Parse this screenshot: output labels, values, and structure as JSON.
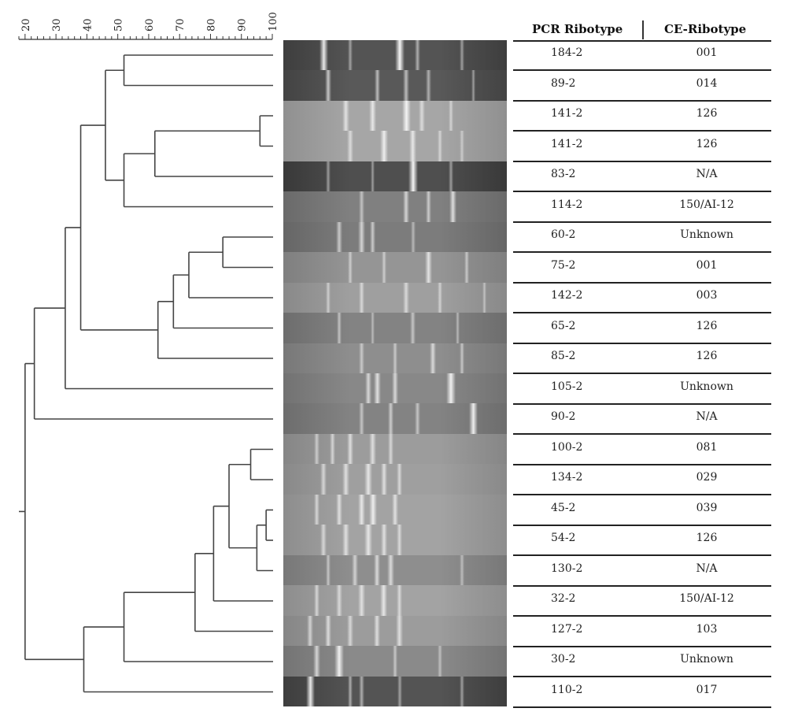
{
  "scale": {
    "ticks": [
      "20",
      "30",
      "40",
      "50",
      "60",
      "70",
      "80",
      "90",
      "100"
    ]
  },
  "table": {
    "header_pcr": "PCR Ribotype",
    "header_ce": "CE-Ribotype",
    "rows": [
      {
        "pcr": "184-2",
        "ce": "001"
      },
      {
        "pcr": "89-2",
        "ce": "014"
      },
      {
        "pcr": "141-2",
        "ce": "126"
      },
      {
        "pcr": "141-2",
        "ce": "126"
      },
      {
        "pcr": "83-2",
        "ce": "N/A"
      },
      {
        "pcr": "114-2",
        "ce": "150/AI-12"
      },
      {
        "pcr": "60-2",
        "ce": "Unknown"
      },
      {
        "pcr": "75-2",
        "ce": "001"
      },
      {
        "pcr": "142-2",
        "ce": "003"
      },
      {
        "pcr": "65-2",
        "ce": "126"
      },
      {
        "pcr": "85-2",
        "ce": "126"
      },
      {
        "pcr": "105-2",
        "ce": "Unknown"
      },
      {
        "pcr": "90-2",
        "ce": "N/A"
      },
      {
        "pcr": "100-2",
        "ce": "081"
      },
      {
        "pcr": "134-2",
        "ce": "029"
      },
      {
        "pcr": "45-2",
        "ce": "039"
      },
      {
        "pcr": "54-2",
        "ce": "126"
      },
      {
        "pcr": "130-2",
        "ce": "N/A"
      },
      {
        "pcr": "32-2",
        "ce": "150/AI-12"
      },
      {
        "pcr": "127-2",
        "ce": "103"
      },
      {
        "pcr": "30-2",
        "ce": "Unknown"
      },
      {
        "pcr": "110-2",
        "ce": "017"
      }
    ]
  },
  "dendrogram": {
    "merges": [
      {
        "a": "L2",
        "b": "L3",
        "sim": 96,
        "id": "N1"
      },
      {
        "a": "L15",
        "b": "L16",
        "sim": 98,
        "id": "N2"
      },
      {
        "a": "N2",
        "b": "L17",
        "sim": 95,
        "id": "N3"
      },
      {
        "a": "L13",
        "b": "L14",
        "sim": 93,
        "id": "N4"
      },
      {
        "a": "L6",
        "b": "L7",
        "sim": 84,
        "id": "N5"
      },
      {
        "a": "N4",
        "b": "N3",
        "sim": 86,
        "id": "N6"
      },
      {
        "a": "N6",
        "b": "L18",
        "sim": 81,
        "id": "N7"
      },
      {
        "a": "N7",
        "b": "L19",
        "sim": 75,
        "id": "N8"
      },
      {
        "a": "N5",
        "b": "L8",
        "sim": 73,
        "id": "N9"
      },
      {
        "a": "N9",
        "b": "L9",
        "sim": 68,
        "id": "N10"
      },
      {
        "a": "N10",
        "b": "L10",
        "sim": 63,
        "id": "N11"
      },
      {
        "a": "N1",
        "b": "L4",
        "sim": 62,
        "id": "N12"
      },
      {
        "a": "N12",
        "b": "L5",
        "sim": 52,
        "id": "N13"
      },
      {
        "a": "L0",
        "b": "L1",
        "sim": 52,
        "id": "N14"
      },
      {
        "a": "N8",
        "b": "L20",
        "sim": 52,
        "id": "N15"
      },
      {
        "a": "N14",
        "b": "N13",
        "sim": 46,
        "id": "N16"
      },
      {
        "a": "N15",
        "b": "L21",
        "sim": 39,
        "id": "N17"
      },
      {
        "a": "N16",
        "b": "N11",
        "sim": 38,
        "id": "N18"
      },
      {
        "a": "N18",
        "b": "L11",
        "sim": 33,
        "id": "N19"
      },
      {
        "a": "N19",
        "b": "L12",
        "sim": 23,
        "id": "N20"
      },
      {
        "a": "N20",
        "b": "N17",
        "sim": 20,
        "id": "N21"
      }
    ]
  },
  "gel": {
    "lanes": [
      {
        "tone": 0.25,
        "bands": [
          [
            0.18,
            0.9
          ],
          [
            0.3,
            0.3
          ],
          [
            0.52,
            1.0
          ],
          [
            0.6,
            0.4
          ],
          [
            0.8,
            0.3
          ]
        ]
      },
      {
        "tone": 0.28,
        "bands": [
          [
            0.2,
            0.6
          ],
          [
            0.42,
            0.5
          ],
          [
            0.55,
            0.5
          ],
          [
            0.65,
            0.4
          ],
          [
            0.85,
            0.3
          ]
        ]
      },
      {
        "tone": 0.72,
        "bands": [
          [
            0.28,
            0.6
          ],
          [
            0.4,
            0.7
          ],
          [
            0.55,
            0.9
          ],
          [
            0.62,
            0.5
          ],
          [
            0.75,
            0.4
          ]
        ]
      },
      {
        "tone": 0.72,
        "bands": [
          [
            0.3,
            0.5
          ],
          [
            0.45,
            0.8
          ],
          [
            0.58,
            0.7
          ],
          [
            0.7,
            0.4
          ],
          [
            0.8,
            0.3
          ]
        ]
      },
      {
        "tone": 0.22,
        "bands": [
          [
            0.2,
            0.3
          ],
          [
            0.4,
            0.3
          ],
          [
            0.58,
            1.0
          ],
          [
            0.75,
            0.3
          ]
        ]
      },
      {
        "tone": 0.5,
        "bands": [
          [
            0.35,
            0.4
          ],
          [
            0.55,
            0.6
          ],
          [
            0.65,
            0.5
          ],
          [
            0.76,
            0.7
          ]
        ]
      },
      {
        "tone": 0.48,
        "bands": [
          [
            0.25,
            0.5
          ],
          [
            0.35,
            0.6
          ],
          [
            0.4,
            0.5
          ],
          [
            0.58,
            0.3
          ]
        ]
      },
      {
        "tone": 0.62,
        "bands": [
          [
            0.3,
            0.4
          ],
          [
            0.45,
            0.4
          ],
          [
            0.65,
            0.7
          ],
          [
            0.82,
            0.4
          ]
        ]
      },
      {
        "tone": 0.68,
        "bands": [
          [
            0.2,
            0.4
          ],
          [
            0.35,
            0.5
          ],
          [
            0.55,
            0.5
          ],
          [
            0.7,
            0.4
          ],
          [
            0.9,
            0.3
          ]
        ]
      },
      {
        "tone": 0.52,
        "bands": [
          [
            0.25,
            0.4
          ],
          [
            0.4,
            0.3
          ],
          [
            0.58,
            0.4
          ],
          [
            0.78,
            0.3
          ]
        ]
      },
      {
        "tone": 0.58,
        "bands": [
          [
            0.35,
            0.4
          ],
          [
            0.5,
            0.4
          ],
          [
            0.67,
            0.6
          ],
          [
            0.8,
            0.4
          ]
        ]
      },
      {
        "tone": 0.55,
        "bands": [
          [
            0.38,
            0.6
          ],
          [
            0.42,
            0.7
          ],
          [
            0.5,
            0.6
          ],
          [
            0.75,
            0.9
          ]
        ]
      },
      {
        "tone": 0.52,
        "bands": [
          [
            0.35,
            0.4
          ],
          [
            0.48,
            0.5
          ],
          [
            0.6,
            0.4
          ],
          [
            0.85,
            0.9
          ]
        ]
      },
      {
        "tone": 0.66,
        "bands": [
          [
            0.15,
            0.4
          ],
          [
            0.22,
            0.5
          ],
          [
            0.3,
            0.6
          ],
          [
            0.4,
            0.6
          ],
          [
            0.48,
            0.5
          ]
        ]
      },
      {
        "tone": 0.68,
        "bands": [
          [
            0.18,
            0.5
          ],
          [
            0.28,
            0.6
          ],
          [
            0.38,
            0.7
          ],
          [
            0.45,
            0.6
          ],
          [
            0.52,
            0.5
          ]
        ]
      },
      {
        "tone": 0.7,
        "bands": [
          [
            0.15,
            0.5
          ],
          [
            0.25,
            0.6
          ],
          [
            0.35,
            0.7
          ],
          [
            0.4,
            0.8
          ],
          [
            0.5,
            0.6
          ]
        ]
      },
      {
        "tone": 0.7,
        "bands": [
          [
            0.18,
            0.5
          ],
          [
            0.28,
            0.6
          ],
          [
            0.38,
            0.7
          ],
          [
            0.45,
            0.6
          ],
          [
            0.52,
            0.5
          ]
        ]
      },
      {
        "tone": 0.58,
        "bands": [
          [
            0.2,
            0.4
          ],
          [
            0.32,
            0.5
          ],
          [
            0.42,
            0.6
          ],
          [
            0.48,
            0.6
          ],
          [
            0.8,
            0.3
          ]
        ]
      },
      {
        "tone": 0.7,
        "bands": [
          [
            0.15,
            0.5
          ],
          [
            0.25,
            0.5
          ],
          [
            0.35,
            0.6
          ],
          [
            0.45,
            0.7
          ],
          [
            0.52,
            0.5
          ]
        ]
      },
      {
        "tone": 0.66,
        "bands": [
          [
            0.12,
            0.5
          ],
          [
            0.2,
            0.6
          ],
          [
            0.3,
            0.5
          ],
          [
            0.42,
            0.6
          ],
          [
            0.52,
            0.6
          ]
        ]
      },
      {
        "tone": 0.56,
        "bands": [
          [
            0.15,
            0.6
          ],
          [
            0.25,
            0.9
          ],
          [
            0.5,
            0.4
          ],
          [
            0.7,
            0.3
          ]
        ]
      },
      {
        "tone": 0.25,
        "bands": [
          [
            0.12,
            0.9
          ],
          [
            0.3,
            0.4
          ],
          [
            0.35,
            0.4
          ],
          [
            0.52,
            0.3
          ],
          [
            0.8,
            0.3
          ]
        ]
      }
    ]
  }
}
